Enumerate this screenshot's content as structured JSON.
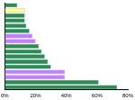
{
  "chart_data": {
    "type": "bar",
    "orientation": "horizontal",
    "categories": [
      null,
      null,
      null,
      null,
      null,
      null,
      null,
      null,
      null,
      null,
      null,
      null,
      null,
      null,
      null,
      null,
      null
    ],
    "values": [
      8,
      13,
      13,
      13,
      14,
      16,
      18,
      20,
      22,
      24,
      26,
      28,
      30,
      39,
      39,
      61,
      73
    ],
    "colors": [
      "#2e8b57",
      "#ffff99",
      "#2e8b57",
      "#2e8b57",
      "#2e8b57",
      "#2e8b57",
      "#c080ff",
      "#c080ff",
      "#2e8b57",
      "#2e8b57",
      "#2e8b57",
      "#2e8b57",
      "#2e8b57",
      "#c080ff",
      "#c080ff",
      "#2e8b57",
      "#2e8b57"
    ],
    "xlim": [
      0,
      80
    ],
    "xticks": [
      {
        "value": 0,
        "label": "0%"
      },
      {
        "value": 20,
        "label": "20%"
      },
      {
        "value": 40,
        "label": "40%"
      },
      {
        "value": 60,
        "label": "60%"
      },
      {
        "value": 80,
        "label": "80%"
      }
    ],
    "grid": false,
    "tick_labels": "x"
  }
}
